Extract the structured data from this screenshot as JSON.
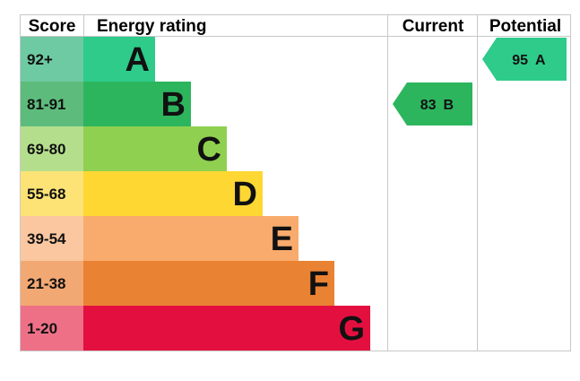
{
  "headers": {
    "score": "Score",
    "energy_rating": "Energy rating",
    "current": "Current",
    "potential": "Potential"
  },
  "bands": [
    {
      "score": "92+",
      "letter": "A",
      "color": "#2ecb8b",
      "score_bg": "#6ecaa2"
    },
    {
      "score": "81-91",
      "letter": "B",
      "color": "#2db55e",
      "score_bg": "#5dbb7c"
    },
    {
      "score": "69-80",
      "letter": "C",
      "color": "#90d050",
      "score_bg": "#b4de8c"
    },
    {
      "score": "55-68",
      "letter": "D",
      "color": "#ffd733",
      "score_bg": "#fde376"
    },
    {
      "score": "39-54",
      "letter": "E",
      "color": "#f8ab6c",
      "score_bg": "#fbc7a0"
    },
    {
      "score": "21-38",
      "letter": "F",
      "color": "#ea8233",
      "score_bg": "#f2a873"
    },
    {
      "score": "1-20",
      "letter": "G",
      "color": "#e3103f",
      "score_bg": "#ee7087"
    }
  ],
  "current": {
    "value": "83",
    "letter": "B",
    "band_index": 1,
    "color": "#2db55e"
  },
  "potential": {
    "value": "95",
    "letter": "A",
    "band_index": 0,
    "color": "#2ecb8b"
  },
  "colors": {
    "grid": "#c8c8c8",
    "text": "#111111"
  }
}
